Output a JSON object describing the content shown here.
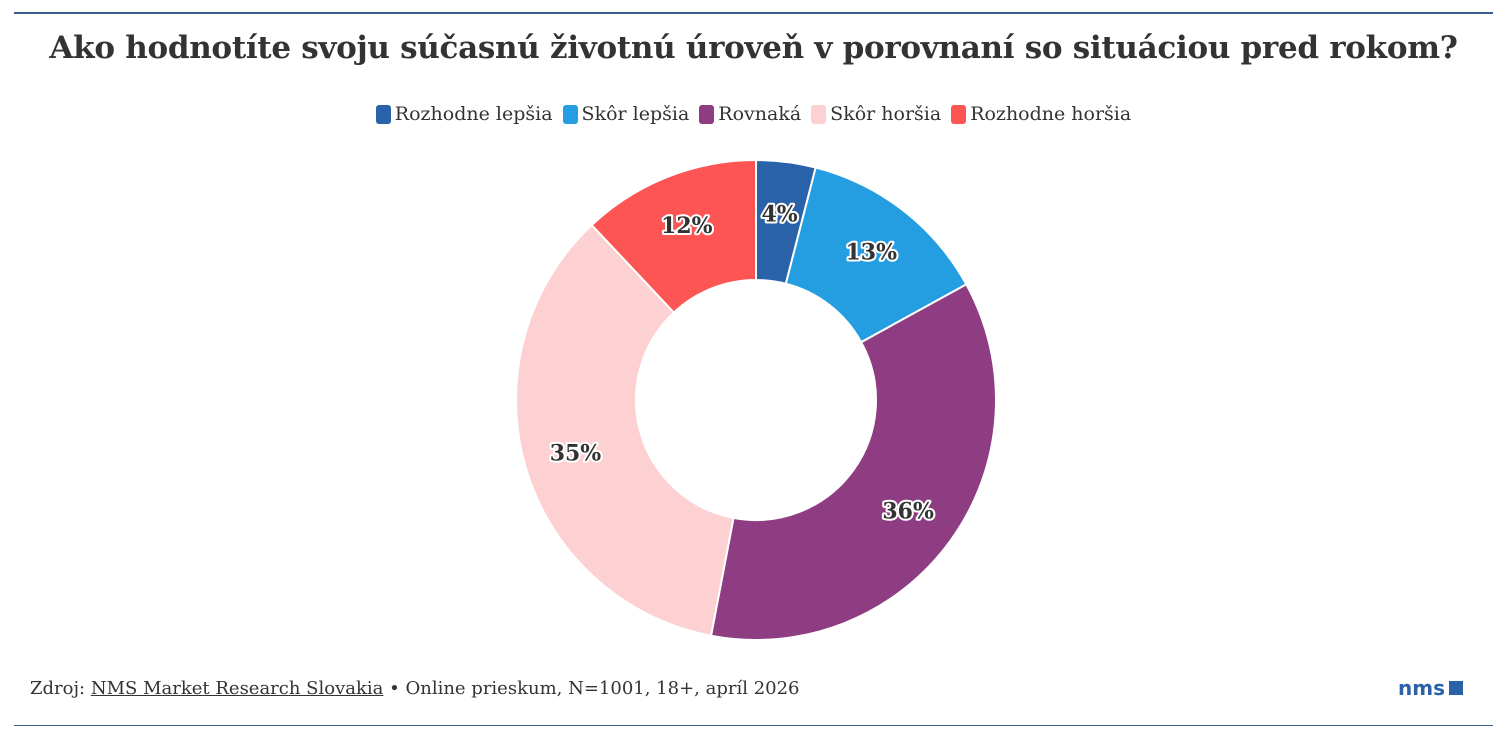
{
  "chart_data": {
    "type": "pie",
    "donut": true,
    "title": "Ako hodnotíte svoju súčasnú životnú úroveň v porovnaní so situáciou pred rokom?",
    "legend_position": "top",
    "categories": [
      "Rozhodne lepšia",
      "Skôr lepšia",
      "Rovnaká",
      "Skôr horšia",
      "Rozhodne horšia"
    ],
    "values": [
      4,
      13,
      36,
      35,
      12
    ],
    "labels": [
      "4%",
      "13%",
      "36%",
      "35%",
      "12%"
    ],
    "colors": [
      "#2962a8",
      "#249ee0",
      "#8f3d82",
      "#fdd1d1",
      "#fd5553"
    ]
  },
  "footer": {
    "prefix": "Zdroj: ",
    "source_link": "NMS Market Research Slovakia",
    "details": " • Online prieskum, N=1001, 18+, apríl 2026"
  },
  "logo": {
    "text": "nms"
  }
}
